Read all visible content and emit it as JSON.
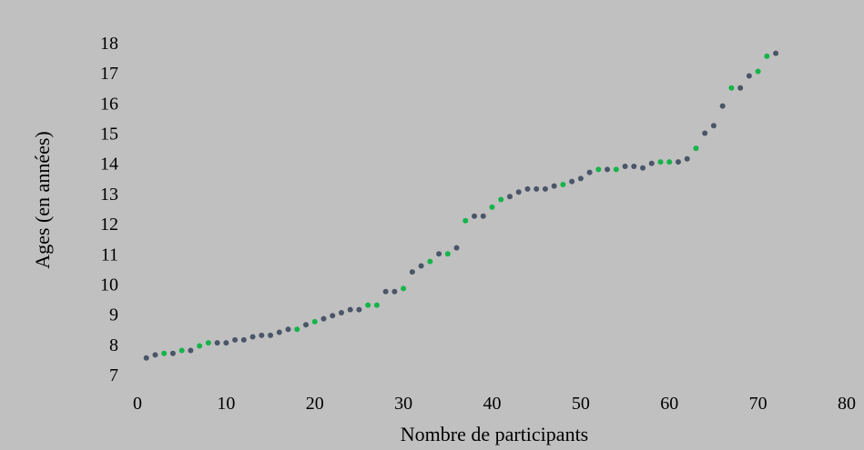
{
  "chart_data": {
    "type": "scatter",
    "title": "",
    "xlabel": "Nombre de participants",
    "ylabel": "Ages (en années)",
    "xlim": [
      0,
      80
    ],
    "ylim": [
      7,
      18
    ],
    "xticks": [
      "0",
      "10",
      "20",
      "30",
      "40",
      "50",
      "60",
      "70",
      "80"
    ],
    "yticks": [
      "7",
      "8",
      "9",
      "10",
      "11",
      "12",
      "13",
      "14",
      "15",
      "16",
      "17",
      "18"
    ],
    "grid": false,
    "legend": "none",
    "colors": {
      "background": "#c0c0c0",
      "series_a": "#4a5568",
      "series_b": "#16b34a"
    },
    "series": [
      {
        "color": "#4a5568",
        "points": [
          [
            1,
            7.55
          ],
          [
            2,
            7.65
          ],
          [
            4,
            7.7
          ],
          [
            6,
            7.8
          ],
          [
            9,
            8.05
          ],
          [
            10,
            8.05
          ],
          [
            11,
            8.15
          ],
          [
            12,
            8.15
          ],
          [
            13,
            8.25
          ],
          [
            14,
            8.3
          ],
          [
            15,
            8.3
          ],
          [
            16,
            8.4
          ],
          [
            17,
            8.5
          ],
          [
            19,
            8.65
          ],
          [
            21,
            8.85
          ],
          [
            22,
            8.95
          ],
          [
            23,
            9.05
          ],
          [
            24,
            9.15
          ],
          [
            25,
            9.15
          ],
          [
            28,
            9.75
          ],
          [
            29,
            9.75
          ],
          [
            31,
            10.4
          ],
          [
            32,
            10.6
          ],
          [
            34,
            11.0
          ],
          [
            36,
            11.2
          ],
          [
            38,
            12.25
          ],
          [
            39,
            12.25
          ],
          [
            42,
            12.9
          ],
          [
            43,
            13.05
          ],
          [
            44,
            13.15
          ],
          [
            45,
            13.15
          ],
          [
            46,
            13.15
          ],
          [
            47,
            13.25
          ],
          [
            49,
            13.4
          ],
          [
            50,
            13.5
          ],
          [
            51,
            13.7
          ],
          [
            53,
            13.8
          ],
          [
            55,
            13.9
          ],
          [
            56,
            13.9
          ],
          [
            57,
            13.85
          ],
          [
            58,
            14.0
          ],
          [
            61,
            14.05
          ],
          [
            62,
            14.15
          ],
          [
            64,
            15.0
          ],
          [
            65,
            15.25
          ],
          [
            66,
            15.9
          ],
          [
            68,
            16.5
          ],
          [
            69,
            16.9
          ],
          [
            72,
            17.65
          ]
        ]
      },
      {
        "color": "#16b34a",
        "points": [
          [
            3,
            7.7
          ],
          [
            5,
            7.8
          ],
          [
            7,
            7.95
          ],
          [
            8,
            8.05
          ],
          [
            18,
            8.5
          ],
          [
            20,
            8.75
          ],
          [
            26,
            9.3
          ],
          [
            27,
            9.3
          ],
          [
            30,
            9.85
          ],
          [
            33,
            10.75
          ],
          [
            35,
            11.0
          ],
          [
            37,
            12.1
          ],
          [
            40,
            12.55
          ],
          [
            41,
            12.8
          ],
          [
            48,
            13.3
          ],
          [
            52,
            13.8
          ],
          [
            54,
            13.8
          ],
          [
            59,
            14.05
          ],
          [
            60,
            14.05
          ],
          [
            63,
            14.5
          ],
          [
            67,
            16.5
          ],
          [
            70,
            17.05
          ],
          [
            71,
            17.55
          ]
        ]
      }
    ]
  }
}
